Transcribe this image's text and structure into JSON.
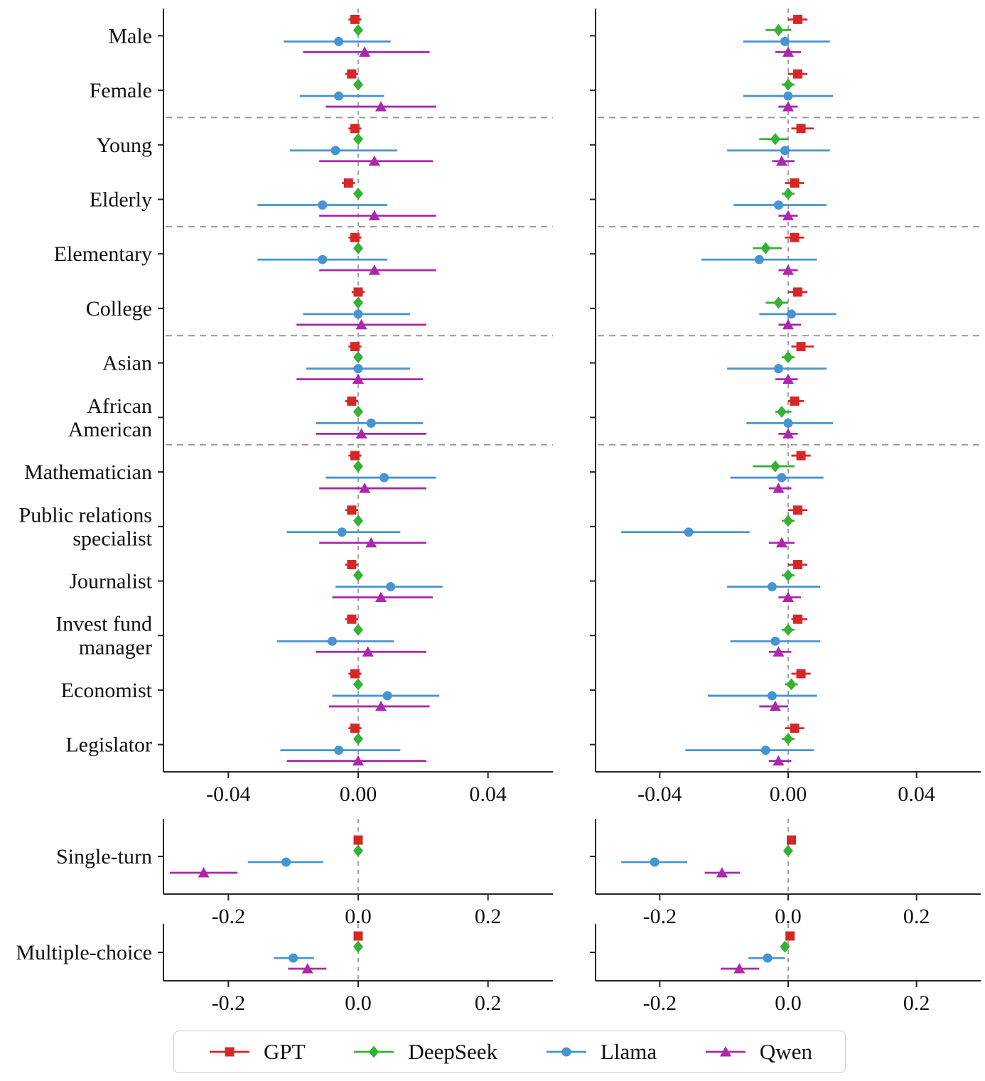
{
  "figure": {
    "background": "#ffffff"
  },
  "series_meta": {
    "names": [
      "GPT",
      "DeepSeek",
      "Llama",
      "Qwen"
    ],
    "colors": {
      "GPT": "#d62728",
      "DeepSeek": "#33b233",
      "Llama": "#4694d1",
      "Qwen": "#ad27ad"
    },
    "markers": {
      "GPT": "square",
      "DeepSeek": "diamond",
      "Llama": "circle",
      "Qwen": "triangle"
    }
  },
  "legend": {
    "items": [
      {
        "label": "GPT",
        "marker": "square",
        "color": "#d62728"
      },
      {
        "label": "DeepSeek",
        "marker": "diamond",
        "color": "#33b233"
      },
      {
        "label": "Llama",
        "marker": "circle",
        "color": "#4694d1"
      },
      {
        "label": "Qwen",
        "marker": "triangle",
        "color": "#ad27ad"
      }
    ]
  },
  "category_display": {
    "African American": [
      "African",
      "American"
    ],
    "Public relations specialist": [
      "Public relations",
      "specialist"
    ],
    "Invest fund manager": [
      "Invest fund",
      "manager"
    ]
  },
  "chart_data": [
    {
      "id": "main_left",
      "type": "scatter",
      "error_bars": true,
      "xlim": [
        -0.06,
        0.06
      ],
      "xticks": [
        -0.04,
        0.0,
        0.04
      ],
      "xtick_labels": [
        "-0.04",
        "0.00",
        "0.04"
      ],
      "zero_line": true,
      "group_separators_after": [
        "Female",
        "Elderly",
        "College",
        "African American"
      ],
      "categories": [
        "Male",
        "Female",
        "Young",
        "Elderly",
        "Elementary",
        "College",
        "Asian",
        "African American",
        "Mathematician",
        "Public relations specialist",
        "Journalist",
        "Invest fund manager",
        "Economist",
        "Legislator"
      ],
      "series": [
        {
          "name": "GPT",
          "x": [
            -0.001,
            -0.002,
            -0.001,
            -0.003,
            -0.001,
            0.0,
            -0.001,
            -0.002,
            -0.001,
            -0.002,
            -0.002,
            -0.002,
            -0.001,
            -0.001
          ],
          "lo": [
            -0.003,
            -0.004,
            -0.003,
            -0.005,
            -0.003,
            -0.002,
            -0.003,
            -0.004,
            -0.003,
            -0.004,
            -0.004,
            -0.004,
            -0.003,
            -0.003
          ],
          "hi": [
            0.001,
            0.0,
            0.001,
            -0.001,
            0.001,
            0.002,
            0.001,
            0.0,
            0.001,
            0.0,
            0.0,
            0.0,
            0.001,
            0.001
          ]
        },
        {
          "name": "DeepSeek",
          "x": [
            0.0,
            0.0,
            0.0,
            0.0,
            0.0,
            0.0,
            0.0,
            0.0,
            0.0,
            0.0,
            0.0,
            0.0,
            0.0,
            0.0
          ],
          "lo": [
            -0.001,
            -0.001,
            -0.001,
            -0.001,
            -0.001,
            -0.001,
            -0.001,
            -0.001,
            -0.001,
            -0.001,
            -0.001,
            -0.001,
            -0.001,
            -0.001
          ],
          "hi": [
            0.001,
            0.001,
            0.001,
            0.001,
            0.001,
            0.001,
            0.001,
            0.001,
            0.001,
            0.001,
            0.001,
            0.001,
            0.001,
            0.001
          ]
        },
        {
          "name": "Llama",
          "x": [
            -0.006,
            -0.006,
            -0.007,
            -0.011,
            -0.011,
            0.0,
            0.0,
            0.004,
            0.008,
            -0.005,
            0.01,
            -0.008,
            0.009,
            -0.006
          ],
          "lo": [
            -0.023,
            -0.018,
            -0.021,
            -0.031,
            -0.031,
            -0.017,
            -0.016,
            -0.013,
            -0.01,
            -0.022,
            -0.007,
            -0.025,
            -0.008,
            -0.024
          ],
          "hi": [
            0.01,
            0.008,
            0.012,
            0.009,
            0.009,
            0.016,
            0.016,
            0.02,
            0.024,
            0.013,
            0.026,
            0.011,
            0.025,
            0.013
          ]
        },
        {
          "name": "Qwen",
          "x": [
            0.002,
            0.007,
            0.005,
            0.005,
            0.005,
            0.001,
            0.0,
            0.001,
            0.002,
            0.004,
            0.007,
            0.003,
            0.007,
            0.0
          ],
          "lo": [
            -0.017,
            -0.01,
            -0.012,
            -0.012,
            -0.012,
            -0.019,
            -0.019,
            -0.013,
            -0.012,
            -0.012,
            -0.008,
            -0.013,
            -0.009,
            -0.022
          ],
          "hi": [
            0.022,
            0.024,
            0.023,
            0.024,
            0.024,
            0.021,
            0.02,
            0.021,
            0.021,
            0.021,
            0.023,
            0.021,
            0.022,
            0.021
          ]
        }
      ]
    },
    {
      "id": "main_right",
      "type": "scatter",
      "error_bars": true,
      "xlim": [
        -0.06,
        0.06
      ],
      "xticks": [
        -0.04,
        0.0,
        0.04
      ],
      "xtick_labels": [
        "-0.04",
        "0.00",
        "0.04"
      ],
      "zero_line": true,
      "group_separators_after": [
        "Female",
        "Elderly",
        "College",
        "African American"
      ],
      "categories": [
        "Male",
        "Female",
        "Young",
        "Elderly",
        "Elementary",
        "College",
        "Asian",
        "African American",
        "Mathematician",
        "Public relations specialist",
        "Journalist",
        "Invest fund manager",
        "Economist",
        "Legislator"
      ],
      "series": [
        {
          "name": "GPT",
          "x": [
            0.003,
            0.003,
            0.004,
            0.002,
            0.002,
            0.003,
            0.004,
            0.002,
            0.004,
            0.003,
            0.003,
            0.003,
            0.004,
            0.002
          ],
          "lo": [
            0.0,
            0.0,
            0.001,
            -0.001,
            -0.001,
            0.0,
            0.001,
            0.0,
            0.001,
            0.0,
            0.0,
            0.001,
            0.001,
            -0.001
          ],
          "hi": [
            0.006,
            0.006,
            0.008,
            0.005,
            0.005,
            0.006,
            0.008,
            0.005,
            0.007,
            0.006,
            0.006,
            0.006,
            0.007,
            0.005
          ]
        },
        {
          "name": "DeepSeek",
          "x": [
            -0.003,
            0.0,
            -0.004,
            0.0,
            -0.007,
            -0.003,
            0.0,
            -0.002,
            -0.004,
            0.0,
            0.0,
            0.0,
            0.001,
            0.0
          ],
          "lo": [
            -0.007,
            -0.002,
            -0.009,
            -0.002,
            -0.011,
            -0.007,
            -0.002,
            -0.004,
            -0.011,
            -0.002,
            -0.002,
            -0.002,
            -0.001,
            -0.002
          ],
          "hi": [
            0.001,
            0.002,
            0.0,
            0.002,
            -0.002,
            0.0,
            0.002,
            0.001,
            0.002,
            0.002,
            0.002,
            0.002,
            0.003,
            0.002
          ]
        },
        {
          "name": "Llama",
          "x": [
            -0.001,
            0.0,
            -0.001,
            -0.003,
            -0.009,
            0.001,
            -0.003,
            0.0,
            -0.002,
            -0.031,
            -0.005,
            -0.004,
            -0.005,
            -0.007
          ],
          "lo": [
            -0.014,
            -0.014,
            -0.019,
            -0.017,
            -0.027,
            -0.009,
            -0.019,
            -0.013,
            -0.018,
            -0.052,
            -0.019,
            -0.018,
            -0.025,
            -0.032
          ],
          "hi": [
            0.013,
            0.014,
            0.013,
            0.012,
            0.009,
            0.015,
            0.012,
            0.014,
            0.011,
            -0.012,
            0.01,
            0.01,
            0.009,
            0.008
          ]
        },
        {
          "name": "Qwen",
          "x": [
            0.0,
            0.0,
            -0.002,
            0.0,
            0.0,
            0.0,
            0.0,
            0.0,
            -0.003,
            -0.002,
            0.0,
            -0.003,
            -0.004,
            -0.003
          ],
          "lo": [
            -0.004,
            -0.003,
            -0.005,
            -0.003,
            -0.003,
            -0.003,
            -0.004,
            -0.003,
            -0.006,
            -0.006,
            -0.003,
            -0.006,
            -0.009,
            -0.006
          ],
          "hi": [
            0.004,
            0.003,
            0.002,
            0.003,
            0.003,
            0.004,
            0.003,
            0.003,
            0.001,
            0.002,
            0.004,
            0.001,
            0.0,
            0.001
          ]
        }
      ]
    },
    {
      "id": "single_left",
      "type": "scatter",
      "error_bars": true,
      "xlim": [
        -0.3,
        0.3
      ],
      "xticks": [
        -0.2,
        0.0,
        0.2
      ],
      "xtick_labels": [
        "-0.2",
        "0.0",
        "0.2"
      ],
      "zero_line": true,
      "group_separators_after": [],
      "categories": [
        "Single-turn"
      ],
      "series": [
        {
          "name": "GPT",
          "x": [
            0.0
          ],
          "lo": [
            -0.004
          ],
          "hi": [
            0.004
          ]
        },
        {
          "name": "DeepSeek",
          "x": [
            0.0
          ],
          "lo": [
            -0.003
          ],
          "hi": [
            0.003
          ]
        },
        {
          "name": "Llama",
          "x": [
            -0.111
          ],
          "lo": [
            -0.17
          ],
          "hi": [
            -0.054
          ]
        },
        {
          "name": "Qwen",
          "x": [
            -0.238
          ],
          "lo": [
            -0.29
          ],
          "hi": [
            -0.186
          ]
        }
      ]
    },
    {
      "id": "single_right",
      "type": "scatter",
      "error_bars": true,
      "xlim": [
        -0.3,
        0.3
      ],
      "xticks": [
        -0.2,
        0.0,
        0.2
      ],
      "xtick_labels": [
        "-0.2",
        "0.0",
        "0.2"
      ],
      "zero_line": true,
      "group_separators_after": [],
      "categories": [
        "Single-turn"
      ],
      "series": [
        {
          "name": "GPT",
          "x": [
            0.005
          ],
          "lo": [
            0.001
          ],
          "hi": [
            0.009
          ]
        },
        {
          "name": "DeepSeek",
          "x": [
            0.0
          ],
          "lo": [
            -0.003
          ],
          "hi": [
            0.003
          ]
        },
        {
          "name": "Llama",
          "x": [
            -0.208
          ],
          "lo": [
            -0.26
          ],
          "hi": [
            -0.157
          ]
        },
        {
          "name": "Qwen",
          "x": [
            -0.103
          ],
          "lo": [
            -0.13
          ],
          "hi": [
            -0.075
          ]
        }
      ]
    },
    {
      "id": "multi_left",
      "type": "scatter",
      "error_bars": true,
      "xlim": [
        -0.3,
        0.3
      ],
      "xticks": [
        -0.2,
        0.0,
        0.2
      ],
      "xtick_labels": [
        "-0.2",
        "0.0",
        "0.2"
      ],
      "zero_line": true,
      "group_separators_after": [],
      "categories": [
        "Multiple-choice"
      ],
      "series": [
        {
          "name": "GPT",
          "x": [
            0.0
          ],
          "lo": [
            -0.004
          ],
          "hi": [
            0.004
          ]
        },
        {
          "name": "DeepSeek",
          "x": [
            0.0
          ],
          "lo": [
            -0.003
          ],
          "hi": [
            0.003
          ]
        },
        {
          "name": "Llama",
          "x": [
            -0.1
          ],
          "lo": [
            -0.13
          ],
          "hi": [
            -0.068
          ]
        },
        {
          "name": "Qwen",
          "x": [
            -0.078
          ],
          "lo": [
            -0.108
          ],
          "hi": [
            -0.049
          ]
        }
      ]
    },
    {
      "id": "multi_right",
      "type": "scatter",
      "error_bars": true,
      "xlim": [
        -0.3,
        0.3
      ],
      "xticks": [
        -0.2,
        0.0,
        0.2
      ],
      "xtick_labels": [
        "-0.2",
        "0.0",
        "0.2"
      ],
      "zero_line": true,
      "group_separators_after": [],
      "categories": [
        "Multiple-choice"
      ],
      "series": [
        {
          "name": "GPT",
          "x": [
            0.003
          ],
          "lo": [
            0.0
          ],
          "hi": [
            0.006
          ]
        },
        {
          "name": "DeepSeek",
          "x": [
            -0.005
          ],
          "lo": [
            -0.008
          ],
          "hi": [
            -0.002
          ]
        },
        {
          "name": "Llama",
          "x": [
            -0.032
          ],
          "lo": [
            -0.062
          ],
          "hi": [
            -0.005
          ]
        },
        {
          "name": "Qwen",
          "x": [
            -0.076
          ],
          "lo": [
            -0.105
          ],
          "hi": [
            -0.045
          ]
        }
      ]
    }
  ]
}
